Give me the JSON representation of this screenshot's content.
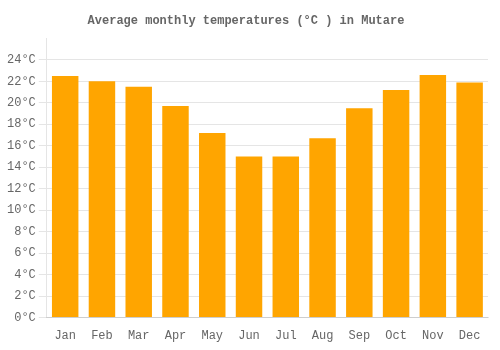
{
  "chart_data": {
    "type": "bar",
    "title": "Average monthly temperatures (°C ) in Mutare",
    "categories": [
      "Jan",
      "Feb",
      "Mar",
      "Apr",
      "May",
      "Jun",
      "Jul",
      "Aug",
      "Sep",
      "Oct",
      "Nov",
      "Dec"
    ],
    "values": [
      22.5,
      22.0,
      21.5,
      19.7,
      17.2,
      15.0,
      15.0,
      16.7,
      19.5,
      21.2,
      22.6,
      21.9
    ],
    "color": "#FFA500",
    "ylim": [
      0,
      26
    ],
    "yticks": [
      {
        "value": 0,
        "label": "0°C"
      },
      {
        "value": 2,
        "label": "2°C"
      },
      {
        "value": 4,
        "label": "4°C"
      },
      {
        "value": 6,
        "label": "6°C"
      },
      {
        "value": 8,
        "label": "8°C"
      },
      {
        "value": 10,
        "label": "10°C"
      },
      {
        "value": 12,
        "label": "12°C"
      },
      {
        "value": 14,
        "label": "14°C"
      },
      {
        "value": 16,
        "label": "16°C"
      },
      {
        "value": 18,
        "label": "18°C"
      },
      {
        "value": 20,
        "label": "20°C"
      },
      {
        "value": 22,
        "label": "22°C"
      },
      {
        "value": 24,
        "label": "24°C"
      }
    ],
    "grid": true
  }
}
